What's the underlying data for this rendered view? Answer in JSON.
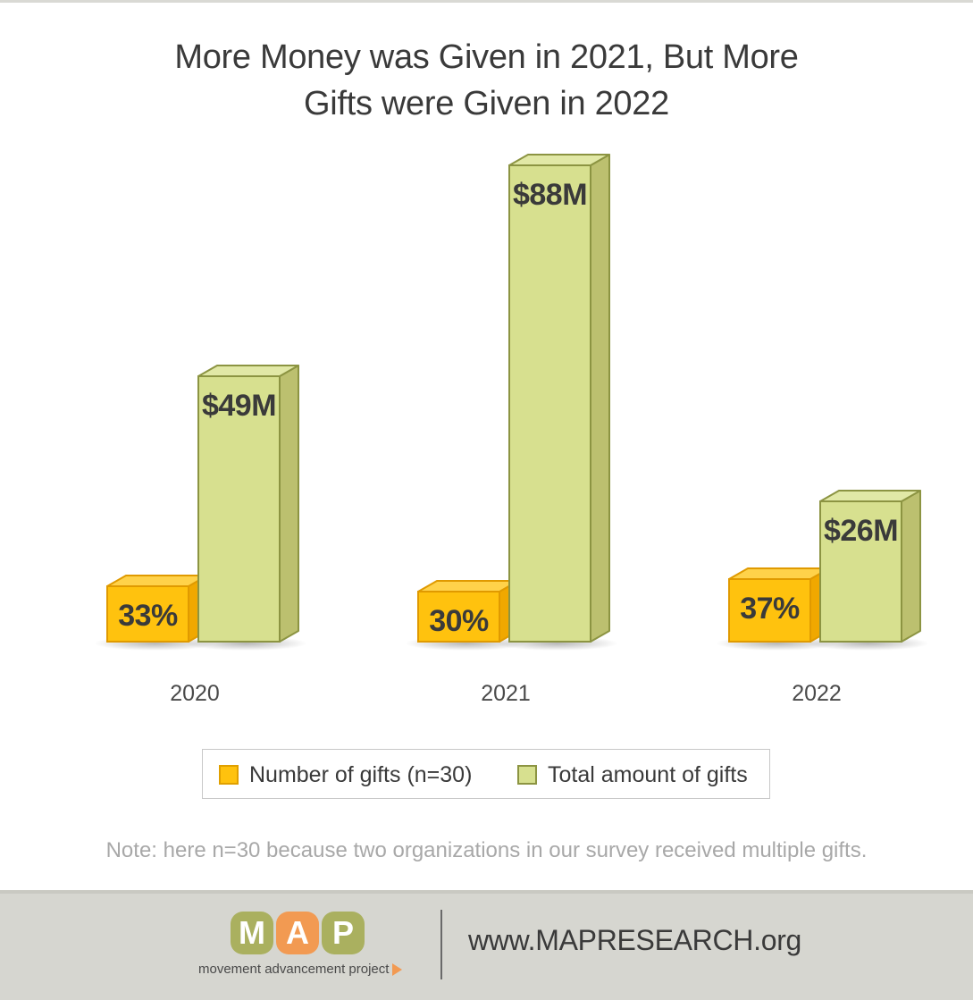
{
  "chart_data": {
    "type": "bar",
    "title_lines": [
      "More Money was Given in 2021, But More",
      "Gifts were Given in 2022"
    ],
    "categories": [
      "2020",
      "2021",
      "2022"
    ],
    "series": [
      {
        "name": "Number of gifts (n=30)",
        "values": [
          33,
          30,
          37
        ],
        "labels": [
          "33%",
          "30%",
          "37%"
        ],
        "color": "#ffc20e"
      },
      {
        "name": "Total amount of gifts",
        "values": [
          49,
          88,
          26
        ],
        "labels": [
          "$49M",
          "$88M",
          "$26M"
        ],
        "color": "#d7e08f"
      }
    ],
    "legend_position": "bottom",
    "grid": false
  },
  "note": "Note: here n=30 because two organizations in our survey received multiple gifts.",
  "footer": {
    "logo_letters": [
      "M",
      "A",
      "P"
    ],
    "logo_colors": [
      "#aab05f",
      "#f29a52",
      "#aab05f"
    ],
    "logo_tagline": "movement advancement project",
    "url": "www.MAPRESEARCH.org"
  }
}
